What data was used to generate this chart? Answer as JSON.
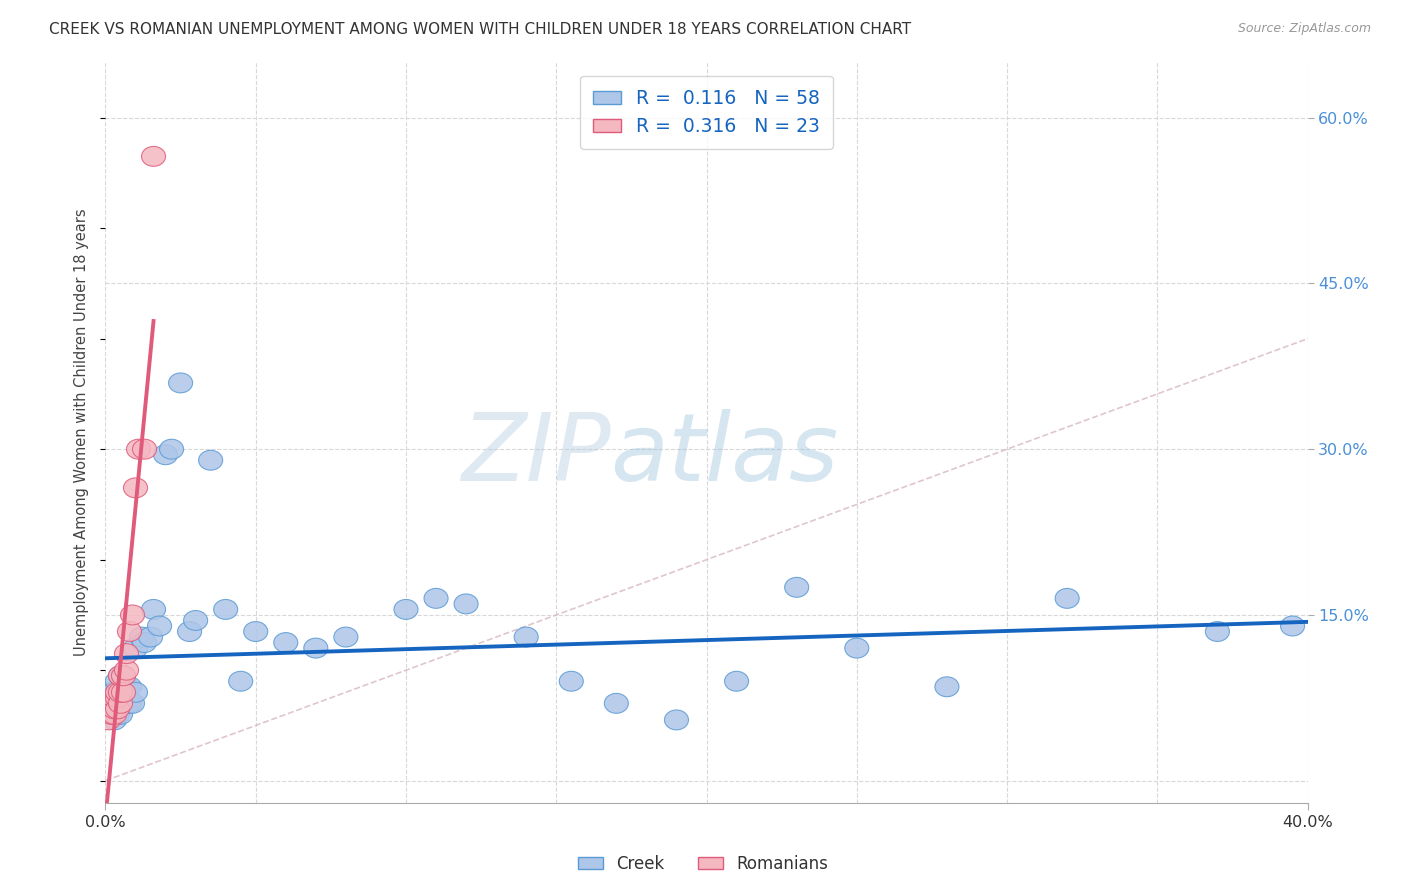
{
  "title": "CREEK VS ROMANIAN UNEMPLOYMENT AMONG WOMEN WITH CHILDREN UNDER 18 YEARS CORRELATION CHART",
  "source": "Source: ZipAtlas.com",
  "ylabel": "Unemployment Among Women with Children Under 18 years",
  "xlim": [
    0.0,
    0.4
  ],
  "ylim": [
    -0.02,
    0.65
  ],
  "yticks_right": [
    0.0,
    0.15,
    0.3,
    0.45,
    0.6
  ],
  "yticklabels_right": [
    "",
    "15.0%",
    "30.0%",
    "45.0%",
    "60.0%"
  ],
  "creek_color": "#aec6e8",
  "creek_edge_color": "#5b9bd5",
  "romanian_color": "#f4b8c1",
  "romanian_edge_color": "#e05a7a",
  "creek_line_color": "#1565c0",
  "romanian_line_color": "#e05a7a",
  "diagonal_color": "#cccccc",
  "watermark_zip": "ZIP",
  "watermark_atlas": "atlas",
  "legend_r_creek": "0.116",
  "legend_n_creek": "58",
  "legend_r_romanian": "0.316",
  "legend_n_romanian": "23",
  "creek_x": [
    0.001,
    0.001,
    0.002,
    0.002,
    0.002,
    0.003,
    0.003,
    0.003,
    0.003,
    0.004,
    0.004,
    0.004,
    0.004,
    0.005,
    0.005,
    0.005,
    0.005,
    0.006,
    0.006,
    0.006,
    0.007,
    0.007,
    0.008,
    0.008,
    0.009,
    0.01,
    0.01,
    0.012,
    0.013,
    0.015,
    0.016,
    0.018,
    0.02,
    0.022,
    0.025,
    0.028,
    0.03,
    0.035,
    0.04,
    0.045,
    0.05,
    0.06,
    0.07,
    0.08,
    0.1,
    0.11,
    0.12,
    0.14,
    0.155,
    0.17,
    0.19,
    0.21,
    0.23,
    0.25,
    0.28,
    0.32,
    0.37,
    0.395
  ],
  "creek_y": [
    0.06,
    0.075,
    0.06,
    0.065,
    0.08,
    0.055,
    0.065,
    0.07,
    0.08,
    0.06,
    0.07,
    0.08,
    0.09,
    0.06,
    0.07,
    0.08,
    0.095,
    0.07,
    0.08,
    0.095,
    0.07,
    0.085,
    0.07,
    0.085,
    0.07,
    0.08,
    0.12,
    0.13,
    0.125,
    0.13,
    0.155,
    0.14,
    0.295,
    0.3,
    0.36,
    0.135,
    0.145,
    0.29,
    0.155,
    0.09,
    0.135,
    0.125,
    0.12,
    0.13,
    0.155,
    0.165,
    0.16,
    0.13,
    0.09,
    0.07,
    0.055,
    0.09,
    0.175,
    0.12,
    0.085,
    0.165,
    0.135,
    0.14
  ],
  "romanian_x": [
    0.001,
    0.001,
    0.002,
    0.002,
    0.003,
    0.003,
    0.003,
    0.004,
    0.004,
    0.004,
    0.005,
    0.005,
    0.005,
    0.006,
    0.006,
    0.007,
    0.007,
    0.008,
    0.009,
    0.01,
    0.011,
    0.013,
    0.016
  ],
  "romanian_y": [
    0.055,
    0.065,
    0.06,
    0.07,
    0.06,
    0.065,
    0.075,
    0.065,
    0.075,
    0.08,
    0.07,
    0.08,
    0.095,
    0.08,
    0.095,
    0.1,
    0.115,
    0.135,
    0.15,
    0.265,
    0.3,
    0.3,
    0.565
  ]
}
